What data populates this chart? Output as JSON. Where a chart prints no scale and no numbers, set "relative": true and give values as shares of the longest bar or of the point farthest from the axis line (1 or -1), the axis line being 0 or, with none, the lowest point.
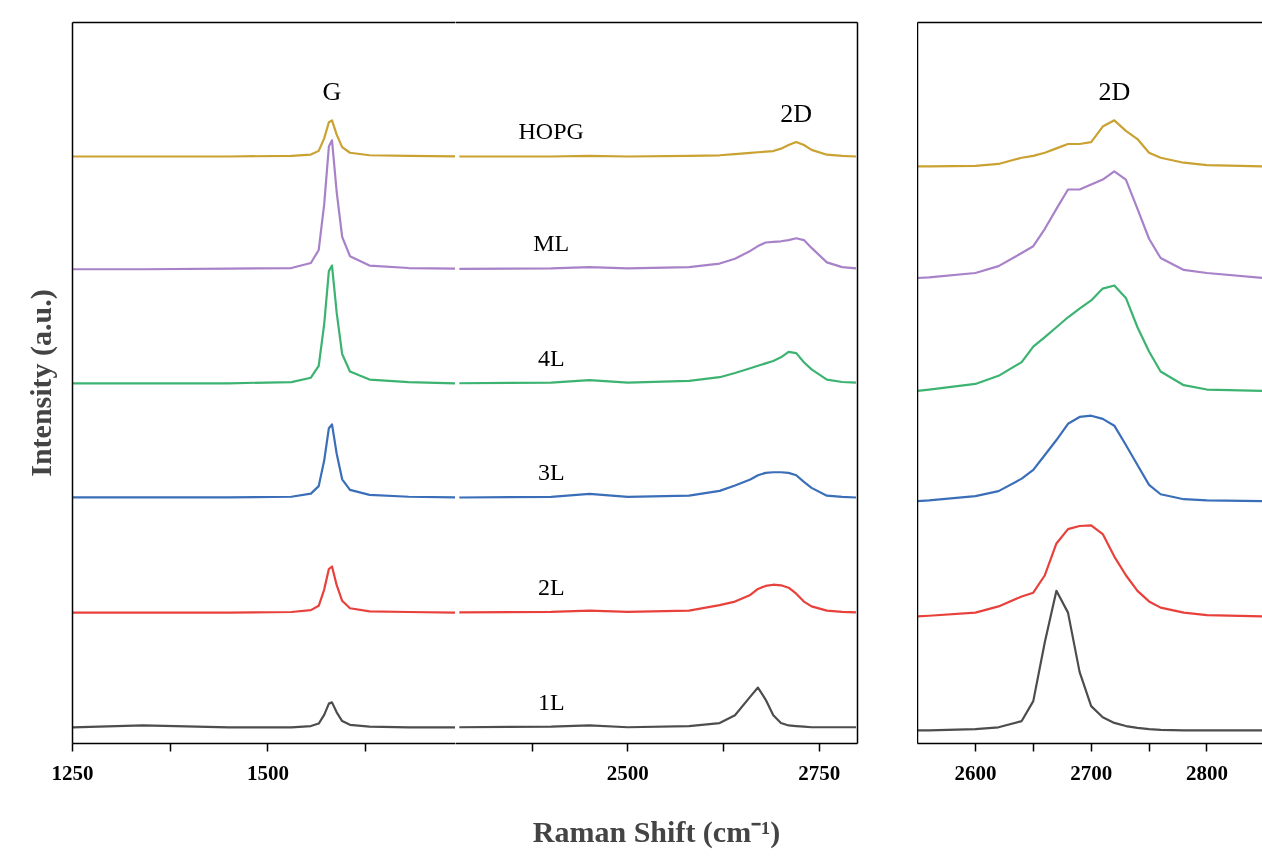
{
  "chart_data": [
    {
      "type": "line",
      "relative": true,
      "ylabel": "Intensity (a.u.)",
      "x": [
        1250,
        1340,
        1450,
        1530,
        1555,
        1565,
        1572,
        1578,
        1582,
        1588,
        1595,
        1605,
        1630,
        1680,
        1740
      ],
      "xlim": [
        1250,
        1740
      ],
      "xticks": [
        1250,
        1500,
        {
          "value": 1375,
          "label": null
        },
        {
          "value": 1625,
          "label": null
        }
      ],
      "grid": false,
      "legend": false,
      "annotations": [
        "G"
      ],
      "series": [
        {
          "color": "#c9a232",
          "values": [
            0.942,
            0.942,
            0.942,
            0.943,
            0.945,
            0.951,
            0.971,
            0.997,
            1.0,
            0.977,
            0.957,
            0.948,
            0.944,
            0.943,
            0.942
          ]
        },
        {
          "color": "#a882c8",
          "values": [
            0.761,
            0.761,
            0.762,
            0.763,
            0.771,
            0.792,
            0.865,
            0.958,
            0.968,
            0.885,
            0.813,
            0.782,
            0.767,
            0.763,
            0.762
          ]
        },
        {
          "color": "#3cb371",
          "values": [
            0.578,
            0.578,
            0.578,
            0.58,
            0.587,
            0.606,
            0.673,
            0.758,
            0.767,
            0.691,
            0.625,
            0.597,
            0.584,
            0.58,
            0.578
          ]
        },
        {
          "color": "#3a6eb8",
          "values": [
            0.395,
            0.395,
            0.395,
            0.396,
            0.401,
            0.413,
            0.454,
            0.506,
            0.512,
            0.465,
            0.424,
            0.407,
            0.399,
            0.396,
            0.395
          ]
        },
        {
          "color": "#e8413c",
          "values": [
            0.21,
            0.21,
            0.21,
            0.211,
            0.214,
            0.221,
            0.247,
            0.28,
            0.284,
            0.254,
            0.229,
            0.217,
            0.212,
            0.211,
            0.21
          ]
        },
        {
          "color": "#4d4d4d",
          "values": [
            0.026,
            0.029,
            0.026,
            0.026,
            0.028,
            0.032,
            0.046,
            0.064,
            0.066,
            0.05,
            0.036,
            0.03,
            0.027,
            0.026,
            0.026
          ]
        }
      ]
    },
    {
      "type": "line",
      "relative": true,
      "xlabel": "Raman Shift (cm⁻¹)",
      "x": [
        2280,
        2400,
        2450,
        2500,
        2580,
        2620,
        2640,
        2660,
        2670,
        2680,
        2690,
        2700,
        2710,
        2720,
        2730,
        2740,
        2760,
        2780,
        2798
      ],
      "xlim": [
        2275,
        2800
      ],
      "xticks": [
        2500,
        2750,
        {
          "value": 2375,
          "label": null
        },
        {
          "value": 2625,
          "label": null
        }
      ],
      "grid": false,
      "legend": false,
      "annotations": [
        "2D"
      ],
      "series": [
        {
          "name": "HOPG",
          "color": "#c9a232",
          "values": [
            0.976,
            0.976,
            0.977,
            0.976,
            0.977,
            0.978,
            0.98,
            0.982,
            0.983,
            0.984,
            0.985,
            0.989,
            0.995,
            1.0,
            0.995,
            0.987,
            0.979,
            0.977,
            0.976
          ]
        },
        {
          "name": "ML",
          "color": "#a882c8",
          "values": [
            0.789,
            0.79,
            0.792,
            0.79,
            0.792,
            0.798,
            0.806,
            0.819,
            0.827,
            0.833,
            0.834,
            0.835,
            0.837,
            0.84,
            0.837,
            0.824,
            0.8,
            0.792,
            0.79
          ]
        },
        {
          "name": "4L",
          "color": "#3cb371",
          "values": [
            0.599,
            0.6,
            0.604,
            0.6,
            0.603,
            0.609,
            0.616,
            0.624,
            0.628,
            0.632,
            0.636,
            0.642,
            0.651,
            0.649,
            0.634,
            0.622,
            0.605,
            0.601,
            0.6
          ]
        },
        {
          "name": "3L",
          "color": "#3a6eb8",
          "values": [
            0.409,
            0.41,
            0.415,
            0.41,
            0.412,
            0.42,
            0.429,
            0.439,
            0.446,
            0.45,
            0.451,
            0.451,
            0.45,
            0.446,
            0.435,
            0.425,
            0.412,
            0.41,
            0.409
          ]
        },
        {
          "name": "2L",
          "color": "#e8413c",
          "values": [
            0.218,
            0.219,
            0.221,
            0.219,
            0.221,
            0.23,
            0.236,
            0.247,
            0.257,
            0.262,
            0.264,
            0.263,
            0.259,
            0.249,
            0.236,
            0.228,
            0.221,
            0.219,
            0.218
          ]
        },
        {
          "name": "1L",
          "color": "#4d4d4d",
          "values": [
            0.027,
            0.028,
            0.03,
            0.027,
            0.029,
            0.034,
            0.047,
            0.078,
            0.093,
            0.073,
            0.047,
            0.034,
            0.03,
            0.029,
            0.028,
            0.027,
            0.027,
            0.027,
            0.027
          ]
        }
      ]
    },
    {
      "type": "line",
      "relative": true,
      "x": [
        2550,
        2560,
        2600,
        2620,
        2640,
        2650,
        2660,
        2670,
        2680,
        2690,
        2700,
        2710,
        2720,
        2730,
        2740,
        2750,
        2760,
        2780,
        2800,
        2848
      ],
      "xlim": [
        2550,
        2848
      ],
      "xticks": [
        2600,
        2700,
        2800,
        {
          "value": 2650,
          "label": null
        },
        {
          "value": 2750,
          "label": null
        }
      ],
      "grid": false,
      "legend": false,
      "annotations": [
        "2D"
      ],
      "series": [
        {
          "color": "#c9a232",
          "values": [
            0.926,
            0.926,
            0.927,
            0.93,
            0.94,
            0.943,
            0.948,
            0.955,
            0.962,
            0.962,
            0.965,
            0.99,
            1.0,
            0.983,
            0.97,
            0.948,
            0.94,
            0.932,
            0.928,
            0.926
          ]
        },
        {
          "color": "#a882c8",
          "values": [
            0.747,
            0.748,
            0.755,
            0.766,
            0.787,
            0.798,
            0.826,
            0.858,
            0.889,
            0.889,
            0.897,
            0.905,
            0.918,
            0.905,
            0.858,
            0.81,
            0.779,
            0.76,
            0.755,
            0.747
          ]
        },
        {
          "color": "#3cb371",
          "values": [
            0.566,
            0.568,
            0.577,
            0.59,
            0.612,
            0.637,
            0.652,
            0.668,
            0.684,
            0.698,
            0.711,
            0.73,
            0.735,
            0.715,
            0.668,
            0.629,
            0.597,
            0.575,
            0.568,
            0.566
          ]
        },
        {
          "color": "#3a6eb8",
          "values": [
            0.389,
            0.39,
            0.397,
            0.405,
            0.425,
            0.439,
            0.463,
            0.487,
            0.513,
            0.524,
            0.526,
            0.521,
            0.51,
            0.479,
            0.447,
            0.415,
            0.4,
            0.392,
            0.39,
            0.389
          ]
        },
        {
          "color": "#e8413c",
          "values": [
            0.204,
            0.205,
            0.21,
            0.22,
            0.236,
            0.242,
            0.27,
            0.321,
            0.344,
            0.349,
            0.35,
            0.336,
            0.3,
            0.27,
            0.245,
            0.228,
            0.218,
            0.21,
            0.206,
            0.204
          ]
        },
        {
          "color": "#4d4d4d",
          "values": [
            0.021,
            0.021,
            0.023,
            0.026,
            0.036,
            0.068,
            0.163,
            0.245,
            0.21,
            0.115,
            0.06,
            0.042,
            0.033,
            0.028,
            0.025,
            0.023,
            0.022,
            0.021,
            0.021,
            0.021
          ]
        }
      ]
    }
  ]
}
